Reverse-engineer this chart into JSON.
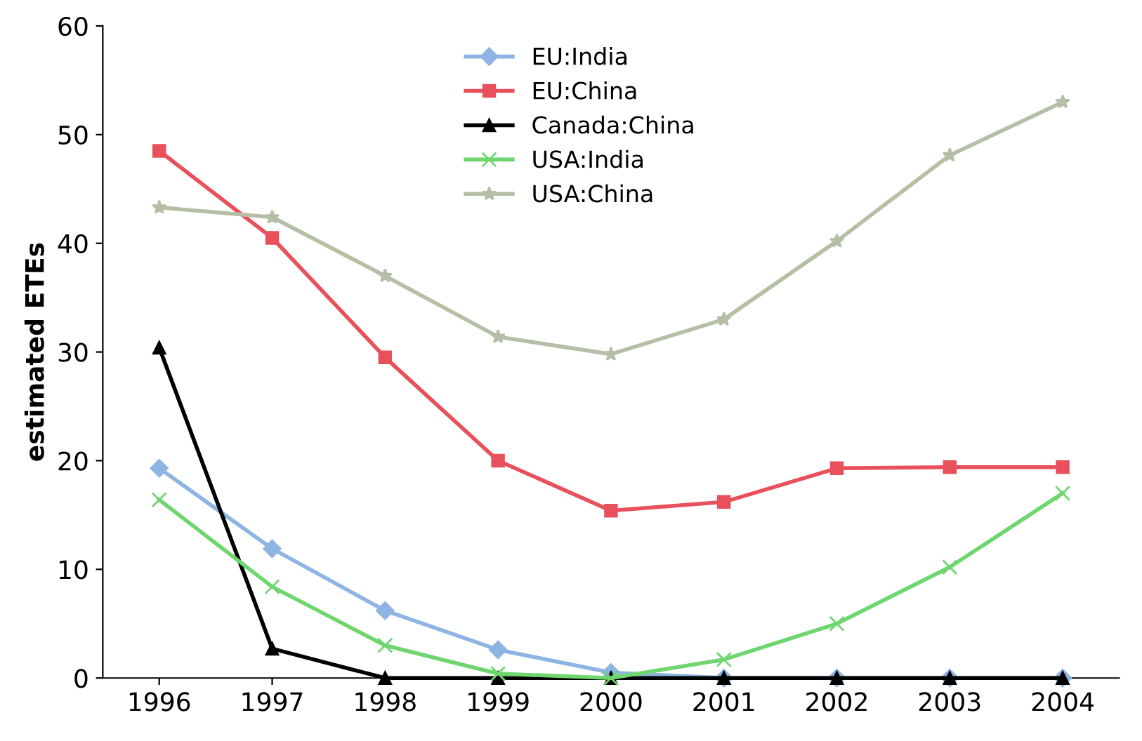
{
  "chart_data": {
    "type": "line",
    "ylabel": "estimated ETEs",
    "categories": [
      "1996",
      "1997",
      "1998",
      "1999",
      "2000",
      "2001",
      "2002",
      "2003",
      "2004"
    ],
    "series": [
      {
        "name": "EU:India",
        "color": "#8eb4e3",
        "marker": "diamond",
        "values": [
          19.3,
          11.9,
          6.2,
          2.6,
          0.5,
          0,
          0,
          0,
          0
        ]
      },
      {
        "name": "EU:China",
        "color": "#e8505b",
        "marker": "square",
        "values": [
          48.5,
          40.5,
          29.5,
          20,
          15.4,
          16.2,
          19.3,
          19.4,
          19.4
        ]
      },
      {
        "name": "Canada:China",
        "color": "#000000",
        "marker": "triangle",
        "values": [
          30.4,
          2.7,
          0,
          0,
          0,
          0,
          0,
          0,
          0
        ]
      },
      {
        "name": "USA:India",
        "color": "#6fd66f",
        "marker": "cross",
        "values": [
          16.4,
          8.4,
          3.0,
          0.4,
          0,
          1.7,
          5.0,
          10.2,
          17.0
        ]
      },
      {
        "name": "USA:China",
        "color": "#b4bfa6",
        "marker": "star",
        "values": [
          43.3,
          42.4,
          37,
          31.4,
          29.8,
          33,
          40.2,
          48.1,
          53
        ]
      }
    ],
    "ylim": [
      0,
      60
    ],
    "yticks": [
      0,
      10,
      20,
      30,
      40,
      50,
      60
    ],
    "grid": false,
    "legend": "top"
  }
}
